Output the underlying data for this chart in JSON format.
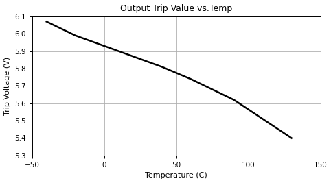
{
  "title": "Output Trip Value vs.Temp",
  "xlabel": "Temperature (C)",
  "ylabel": "Trip Voltage (V)",
  "xlim": [
    -50,
    150
  ],
  "ylim": [
    5.3,
    6.1
  ],
  "xticks": [
    -50,
    0,
    50,
    100,
    150
  ],
  "yticks": [
    5.3,
    5.4,
    5.5,
    5.6,
    5.7,
    5.8,
    5.9,
    6.0,
    6.1
  ],
  "x_data": [
    -40,
    -30,
    -20,
    -10,
    0,
    10,
    20,
    30,
    40,
    50,
    60,
    70,
    80,
    90,
    100,
    110,
    120,
    130
  ],
  "y_data": [
    6.07,
    6.03,
    5.99,
    5.96,
    5.93,
    5.9,
    5.87,
    5.84,
    5.81,
    5.775,
    5.74,
    5.7,
    5.66,
    5.62,
    5.565,
    5.51,
    5.455,
    5.4
  ],
  "line_color": "#000000",
  "line_width": 1.8,
  "bg_color": "#ffffff",
  "grid_color": "#b0b0b0",
  "title_fontsize": 9,
  "label_fontsize": 8,
  "tick_fontsize": 7.5
}
